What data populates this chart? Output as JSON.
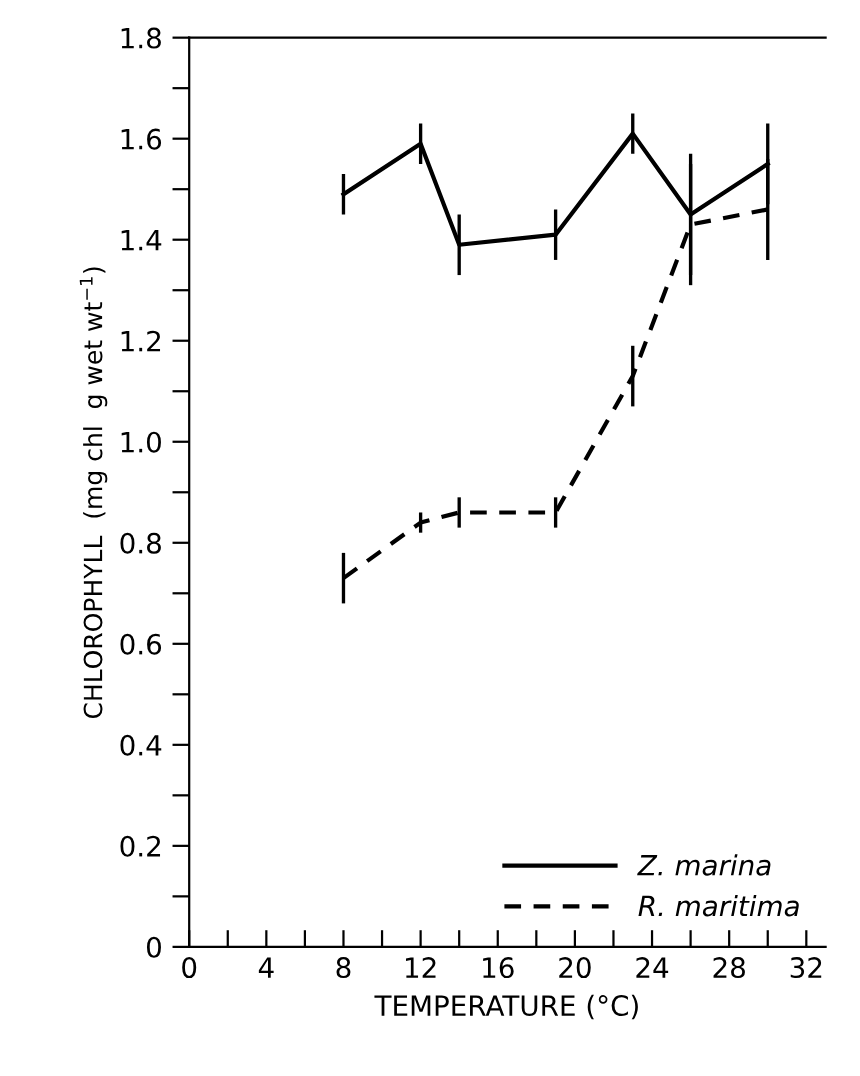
{
  "chart_data": {
    "type": "line",
    "xlabel": "TEMPERATURE (°C)",
    "ylabel": "CHLOROPHYLL  (mg chl  g wet wt$^{−1}$)",
    "series": [
      {
        "name": "Z. marina",
        "color": "#000000",
        "line_style": "solid",
        "x": [
          8,
          12,
          14,
          19,
          23,
          26,
          30
        ],
        "values": [
          1.49,
          1.59,
          1.39,
          1.41,
          1.61,
          1.45,
          1.55
        ],
        "errors": [
          0.04,
          0.04,
          0.06,
          0.05,
          0.04,
          0.12,
          0.08
        ]
      },
      {
        "name": "R. maritima",
        "color": "#000000",
        "line_style": "dashed",
        "x": [
          8,
          12,
          14,
          19,
          23,
          26,
          30
        ],
        "values": [
          0.73,
          0.84,
          0.86,
          0.86,
          1.13,
          1.43,
          1.46
        ],
        "errors": [
          0.05,
          0.02,
          0.03,
          0.03,
          0.06,
          0.12,
          0.1
        ]
      }
    ],
    "xlim": [
      0,
      33
    ],
    "ylim": [
      0,
      1.8
    ],
    "xticks": [
      0,
      {
        "value": 2,
        "label": null
      },
      4,
      {
        "value": 6,
        "label": null
      },
      8,
      {
        "value": 10,
        "label": null
      },
      12,
      {
        "value": 14,
        "label": null
      },
      16,
      {
        "value": 18,
        "label": null
      },
      20,
      {
        "value": 22,
        "label": null
      },
      24,
      {
        "value": 26,
        "label": null
      },
      28,
      {
        "value": 30,
        "label": null
      },
      32
    ],
    "yticks": [
      0,
      {
        "value": 0.1,
        "label": null
      },
      0.2,
      {
        "value": 0.3,
        "label": null
      },
      0.4,
      {
        "value": 0.5,
        "label": null
      },
      0.6,
      {
        "value": 0.7,
        "label": null
      },
      0.8,
      {
        "value": 0.9,
        "label": null
      },
      {
        "value": 1.0,
        "label": "1.0"
      },
      {
        "value": 1.1,
        "label": null
      },
      1.2,
      {
        "value": 1.3,
        "label": null
      },
      1.4,
      {
        "value": 1.5,
        "label": null
      },
      1.6,
      {
        "value": 1.7,
        "label": null
      },
      1.8
    ],
    "grid": false,
    "legend": "bottom right",
    "marker": "none"
  }
}
